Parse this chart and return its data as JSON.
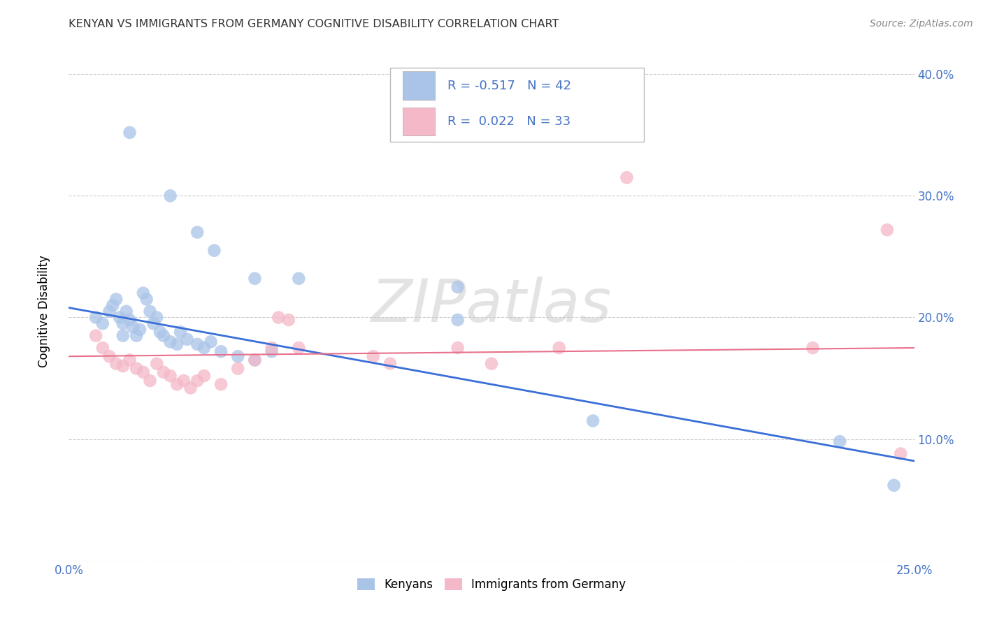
{
  "title": "KENYAN VS IMMIGRANTS FROM GERMANY COGNITIVE DISABILITY CORRELATION CHART",
  "source": "Source: ZipAtlas.com",
  "ylabel_label": "Cognitive Disability",
  "xlim": [
    0.0,
    0.25
  ],
  "ylim": [
    0.0,
    0.42
  ],
  "xticks": [
    0.0,
    0.05,
    0.1,
    0.15,
    0.2,
    0.25
  ],
  "yticks": [
    0.0,
    0.1,
    0.2,
    0.3,
    0.4
  ],
  "background_color": "#ffffff",
  "grid_color": "#cccccc",
  "kenyan_color": "#aac4e8",
  "german_color": "#f4b8c8",
  "kenyan_line_color": "#3a6fd8",
  "german_line_color": "#e8708a",
  "legend_R_kenyan": "-0.517",
  "legend_N_kenyan": "42",
  "legend_R_german": "0.022",
  "legend_N_german": "33",
  "watermark": "ZIPatlas",
  "kenyan_points": [
    [
      0.008,
      0.2
    ],
    [
      0.01,
      0.195
    ],
    [
      0.012,
      0.205
    ],
    [
      0.013,
      0.21
    ],
    [
      0.014,
      0.215
    ],
    [
      0.015,
      0.2
    ],
    [
      0.016,
      0.195
    ],
    [
      0.016,
      0.185
    ],
    [
      0.017,
      0.205
    ],
    [
      0.018,
      0.198
    ],
    [
      0.019,
      0.192
    ],
    [
      0.02,
      0.185
    ],
    [
      0.021,
      0.19
    ],
    [
      0.022,
      0.22
    ],
    [
      0.023,
      0.215
    ],
    [
      0.024,
      0.205
    ],
    [
      0.025,
      0.195
    ],
    [
      0.026,
      0.2
    ],
    [
      0.027,
      0.188
    ],
    [
      0.028,
      0.185
    ],
    [
      0.03,
      0.18
    ],
    [
      0.032,
      0.178
    ],
    [
      0.033,
      0.188
    ],
    [
      0.035,
      0.182
    ],
    [
      0.038,
      0.178
    ],
    [
      0.04,
      0.175
    ],
    [
      0.042,
      0.18
    ],
    [
      0.045,
      0.172
    ],
    [
      0.05,
      0.168
    ],
    [
      0.055,
      0.165
    ],
    [
      0.06,
      0.172
    ],
    [
      0.018,
      0.352
    ],
    [
      0.03,
      0.3
    ],
    [
      0.038,
      0.27
    ],
    [
      0.043,
      0.255
    ],
    [
      0.055,
      0.232
    ],
    [
      0.068,
      0.232
    ],
    [
      0.115,
      0.225
    ],
    [
      0.115,
      0.198
    ],
    [
      0.155,
      0.115
    ],
    [
      0.228,
      0.098
    ],
    [
      0.244,
      0.062
    ]
  ],
  "german_points": [
    [
      0.008,
      0.185
    ],
    [
      0.01,
      0.175
    ],
    [
      0.012,
      0.168
    ],
    [
      0.014,
      0.162
    ],
    [
      0.016,
      0.16
    ],
    [
      0.018,
      0.165
    ],
    [
      0.02,
      0.158
    ],
    [
      0.022,
      0.155
    ],
    [
      0.024,
      0.148
    ],
    [
      0.026,
      0.162
    ],
    [
      0.028,
      0.155
    ],
    [
      0.03,
      0.152
    ],
    [
      0.032,
      0.145
    ],
    [
      0.034,
      0.148
    ],
    [
      0.036,
      0.142
    ],
    [
      0.038,
      0.148
    ],
    [
      0.04,
      0.152
    ],
    [
      0.045,
      0.145
    ],
    [
      0.05,
      0.158
    ],
    [
      0.055,
      0.165
    ],
    [
      0.06,
      0.175
    ],
    [
      0.062,
      0.2
    ],
    [
      0.065,
      0.198
    ],
    [
      0.068,
      0.175
    ],
    [
      0.09,
      0.168
    ],
    [
      0.095,
      0.162
    ],
    [
      0.115,
      0.175
    ],
    [
      0.125,
      0.162
    ],
    [
      0.145,
      0.175
    ],
    [
      0.165,
      0.315
    ],
    [
      0.22,
      0.175
    ],
    [
      0.242,
      0.272
    ],
    [
      0.246,
      0.088
    ]
  ],
  "blue_line": [
    [
      0.0,
      0.208
    ],
    [
      0.25,
      0.082
    ]
  ],
  "pink_line": [
    [
      0.0,
      0.168
    ],
    [
      0.25,
      0.175
    ]
  ]
}
